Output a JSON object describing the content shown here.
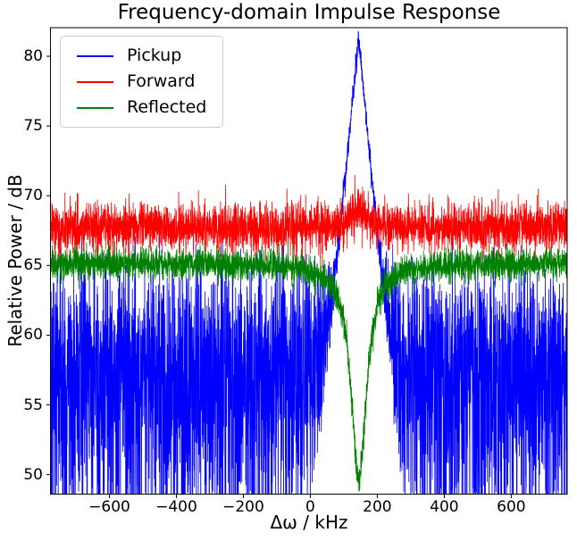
{
  "chart_data": {
    "type": "line",
    "title": "Frequency-domain Impulse Response",
    "xlabel": "Δω / kHz",
    "ylabel": "Relative Power / dB",
    "xlim": [
      -776,
      767
    ],
    "ylim": [
      48.6,
      82.05
    ],
    "grid": false,
    "legend_position": "upper-left",
    "background_color": "#ffffff",
    "spine_color": "#000000",
    "x_ticks": [
      {
        "value": -600,
        "label": "−600"
      },
      {
        "value": -400,
        "label": "−400"
      },
      {
        "value": -200,
        "label": "−200"
      },
      {
        "value": 0,
        "label": "0"
      },
      {
        "value": 200,
        "label": "200"
      },
      {
        "value": 400,
        "label": "400"
      },
      {
        "value": 600,
        "label": "600"
      }
    ],
    "y_ticks": [
      {
        "value": 50,
        "label": "50"
      },
      {
        "value": 55,
        "label": "55"
      },
      {
        "value": 60,
        "label": "60"
      },
      {
        "value": 65,
        "label": "65"
      },
      {
        "value": 70,
        "label": "70"
      },
      {
        "value": 75,
        "label": "75"
      },
      {
        "value": 80,
        "label": "80"
      }
    ],
    "points_per_series": 4000,
    "seed": 20240613,
    "series": [
      {
        "name": "Pickup",
        "color": "#0000ff",
        "summary": "Broadband noisy band spanning ~49–66 dB across the full frequency range, with a sharp triangular resonance peak rising to ≈81 dB centered at ≈ +144 kHz",
        "model": {
          "type": "noise_floor_plus_peak",
          "floor_db": 58.8,
          "floor_noise": "exponential_power",
          "peak": {
            "center_khz": 144,
            "top_db": 81.3,
            "slope_db_per_khz": 0.255,
            "jitter_db": 0.45
          }
        }
      },
      {
        "name": "Forward",
        "color": "#ff0000",
        "summary": "Flat noisy band at ≈67.8 dB (spread ~66–70.5 dB) across the full range with a small ≈+1 dB bump near +145 kHz",
        "model": {
          "type": "gaussian_band",
          "mean_db": 67.7,
          "sigma_db": 0.85,
          "bump": {
            "center_khz": 145,
            "amp_db": 1.2,
            "width_khz": 35
          }
        }
      },
      {
        "name": "Reflected",
        "color": "#008000",
        "summary": "Flat noisy band at ≈65.2 dB (spread ~63.5–66.5 dB) with a sharp absorption notch dipping to ≈49.8 dB at ≈ +145 kHz",
        "model": {
          "type": "gaussian_band_with_notch",
          "mean_db": 65.15,
          "sigma_db": 0.55,
          "notch": {
            "center_khz": 145,
            "depth_db": 15.4,
            "width_khz": 28
          }
        }
      }
    ]
  }
}
